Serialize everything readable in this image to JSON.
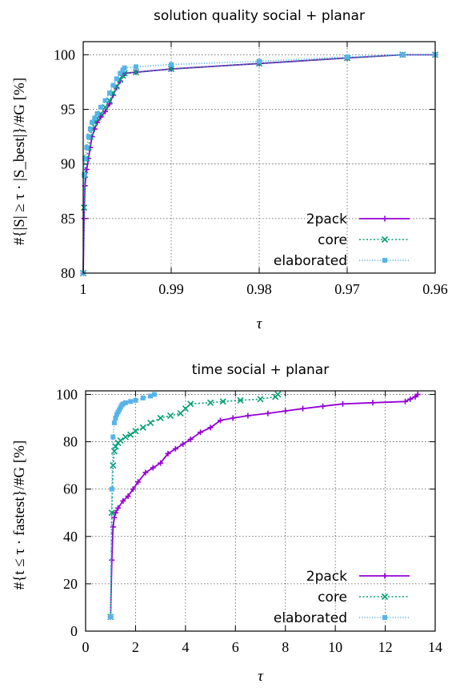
{
  "chart_data": [
    {
      "type": "line",
      "title": "solution quality social + planar",
      "xlabel": "τ",
      "ylabel": "#{|S| ≥ τ · |S_best|}/#G [%]",
      "xlim": [
        1,
        0.96
      ],
      "ylim": [
        80,
        101.2
      ],
      "x_ticks": [
        1,
        0.99,
        0.98,
        0.97,
        0.96
      ],
      "x_tick_labels": [
        "1",
        "0.99",
        "0.98",
        "0.97",
        "0.96"
      ],
      "y_ticks": [
        80,
        85,
        90,
        95,
        100
      ],
      "y_tick_labels": [
        "80",
        "85",
        "90",
        "95",
        "100"
      ],
      "grid": true,
      "legend_position": "bottom-right",
      "series": [
        {
          "name": "2pack",
          "color": "#9400d3",
          "dash": "solid",
          "marker": "plus",
          "x": [
            1,
            0.9999,
            0.9998,
            0.9996,
            0.9994,
            0.9992,
            0.999,
            0.9987,
            0.9984,
            0.998,
            0.9975,
            0.997,
            0.9966,
            0.9962,
            0.9958,
            0.9955,
            0.9953,
            0.994,
            0.99,
            0.98,
            0.97,
            0.9637,
            0.96
          ],
          "y": [
            80,
            85,
            88,
            89.5,
            90.5,
            91.5,
            92.5,
            93.2,
            93.8,
            94.3,
            94.8,
            95.5,
            96.3,
            97,
            97.6,
            98.1,
            98.3,
            98.4,
            98.7,
            99.2,
            99.7,
            100,
            100
          ]
        },
        {
          "name": "core",
          "color": "#009e73",
          "dash": "dotted",
          "marker": "x",
          "x": [
            1,
            0.9999,
            0.9998,
            0.9996,
            0.9994,
            0.9992,
            0.999,
            0.9987,
            0.9984,
            0.998,
            0.9975,
            0.997,
            0.9966,
            0.9962,
            0.9958,
            0.9955,
            0.9953,
            0.994,
            0.99,
            0.98,
            0.97,
            0.9637,
            0.96
          ],
          "y": [
            80,
            86,
            89,
            90.5,
            91.5,
            92.5,
            93.2,
            93.8,
            94.2,
            94.6,
            95.2,
            95.8,
            96.5,
            97.1,
            97.7,
            98.1,
            98.3,
            98.4,
            98.7,
            99.2,
            99.7,
            100,
            100
          ]
        },
        {
          "name": "elaborated",
          "color": "#56b4e9",
          "dash": "dotted",
          "marker": "square",
          "x": [
            1,
            0.9999,
            0.9998,
            0.9996,
            0.9994,
            0.9992,
            0.999,
            0.9987,
            0.9984,
            0.998,
            0.9975,
            0.997,
            0.9966,
            0.9962,
            0.9958,
            0.9955,
            0.9953,
            0.994,
            0.99,
            0.98,
            0.97,
            0.9637,
            0.96
          ],
          "y": [
            80,
            89,
            90.5,
            91.5,
            92.5,
            93.2,
            93.8,
            94.2,
            94.6,
            95.2,
            95.8,
            96.5,
            97.2,
            97.8,
            98.3,
            98.6,
            98.8,
            98.9,
            99.1,
            99.4,
            99.8,
            100,
            100
          ]
        }
      ]
    },
    {
      "type": "line",
      "title": "time social + planar",
      "xlabel": "τ",
      "ylabel": "#{t ≤ τ · fastest}/#G [%]",
      "xlim": [
        0,
        14
      ],
      "ylim": [
        0,
        101.5
      ],
      "x_ticks": [
        0,
        2,
        4,
        6,
        8,
        10,
        12,
        14
      ],
      "x_tick_labels": [
        "0",
        "2",
        "4",
        "6",
        "8",
        "10",
        "12",
        "14"
      ],
      "y_ticks": [
        0,
        20,
        40,
        60,
        80,
        100
      ],
      "y_tick_labels": [
        "0",
        "20",
        "40",
        "60",
        "80",
        "100"
      ],
      "grid": true,
      "legend_position": "bottom-right",
      "series": [
        {
          "name": "2pack",
          "color": "#9400d3",
          "dash": "solid",
          "marker": "plus",
          "x": [
            1,
            1.05,
            1.1,
            1.15,
            1.2,
            1.3,
            1.5,
            1.7,
            1.9,
            2.1,
            2.4,
            2.7,
            3.0,
            3.3,
            3.6,
            3.9,
            4.2,
            4.6,
            5.0,
            5.4,
            5.9,
            6.5,
            7.3,
            8.0,
            8.7,
            9.5,
            10.3,
            11.5,
            12.8,
            13.0,
            13.2,
            13.3
          ],
          "y": [
            6,
            30,
            44,
            48,
            50,
            52,
            55,
            57,
            60,
            63,
            67,
            69,
            71,
            75,
            77,
            79,
            81,
            84,
            86,
            89,
            90,
            91,
            92,
            93,
            94,
            95,
            96,
            96.5,
            97,
            98,
            99,
            100
          ]
        },
        {
          "name": "core",
          "color": "#009e73",
          "dash": "dotted",
          "marker": "x",
          "x": [
            1,
            1.05,
            1.1,
            1.15,
            1.2,
            1.3,
            1.4,
            1.6,
            1.8,
            2.0,
            2.3,
            2.6,
            3.0,
            3.4,
            3.8,
            4.0,
            4.2,
            5.0,
            5.5,
            6.2,
            7.0,
            7.6,
            7.7
          ],
          "y": [
            6,
            50,
            70,
            76,
            78,
            79.5,
            80.5,
            82,
            83,
            84.5,
            86,
            88,
            90,
            91,
            92,
            94,
            96,
            96.5,
            97,
            97.5,
            98,
            99,
            100
          ]
        },
        {
          "name": "elaborated",
          "color": "#56b4e9",
          "dash": "dotted",
          "marker": "square",
          "x": [
            1,
            1.05,
            1.1,
            1.15,
            1.2,
            1.25,
            1.3,
            1.35,
            1.4,
            1.45,
            1.5,
            1.6,
            1.8,
            2.0,
            2.3,
            2.6,
            2.75
          ],
          "y": [
            6,
            60,
            82,
            88,
            90,
            91.5,
            92.5,
            93.5,
            94.5,
            95.5,
            96,
            96.5,
            97,
            97.5,
            98.5,
            99.3,
            100
          ]
        }
      ]
    }
  ]
}
